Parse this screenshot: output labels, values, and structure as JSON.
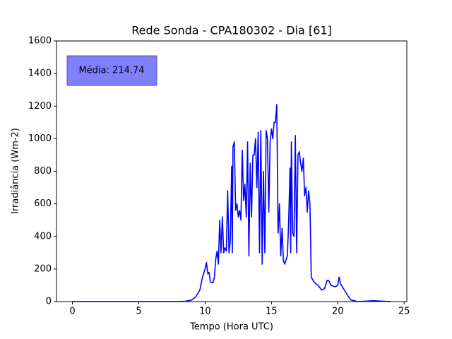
{
  "chart_data": {
    "type": "line",
    "title": "Rede Sonda - CPA180302 - Dia [61]",
    "x_label": "Tempo (Hora UTC)",
    "y_label": "Irradiância (Wm-2)",
    "annotation": "Média: 214.74",
    "x": [
      0,
      2,
      4,
      6,
      8,
      8.5,
      9.0,
      9.3,
      9.6,
      9.8,
      10.0,
      10.1,
      10.2,
      10.3,
      10.4,
      10.6,
      10.7,
      10.8,
      10.9,
      11.0,
      11.1,
      11.2,
      11.3,
      11.4,
      11.5,
      11.6,
      11.7,
      11.8,
      11.9,
      12.0,
      12.05,
      12.1,
      12.2,
      12.3,
      12.4,
      12.5,
      12.6,
      12.7,
      12.8,
      12.9,
      13.0,
      13.1,
      13.2,
      13.3,
      13.4,
      13.5,
      13.6,
      13.7,
      13.8,
      13.9,
      14.0,
      14.1,
      14.2,
      14.3,
      14.4,
      14.5,
      14.6,
      14.7,
      14.8,
      14.9,
      15.0,
      15.1,
      15.2,
      15.3,
      15.4,
      15.5,
      15.6,
      15.7,
      15.8,
      15.9,
      16.0,
      16.2,
      16.3,
      16.4,
      16.45,
      16.5,
      16.6,
      16.7,
      16.8,
      16.9,
      17.0,
      17.1,
      17.2,
      17.3,
      17.4,
      17.5,
      17.6,
      17.7,
      17.8,
      17.9,
      18.0,
      18.2,
      18.5,
      18.8,
      19.0,
      19.2,
      19.3,
      19.5,
      19.8,
      20.0,
      20.1,
      20.2,
      20.5,
      20.8,
      21.0,
      21.5,
      22.7,
      24
    ],
    "series": [
      {
        "name": "Irradiância",
        "color": "#0000ff",
        "values": [
          0,
          0,
          0,
          0,
          0,
          2,
          10,
          30,
          70,
          150,
          200,
          240,
          170,
          180,
          120,
          115,
          150,
          260,
          310,
          230,
          500,
          300,
          520,
          300,
          330,
          310,
          680,
          300,
          370,
          830,
          300,
          950,
          980,
          560,
          600,
          520,
          560,
          500,
          930,
          620,
          720,
          520,
          980,
          280,
          850,
          520,
          900,
          900,
          1000,
          700,
          1040,
          300,
          1050,
          230,
          800,
          300,
          1050,
          1000,
          550,
          980,
          1060,
          1000,
          1100,
          1100,
          1210,
          420,
          600,
          280,
          450,
          250,
          230,
          280,
          500,
          820,
          300,
          980,
          420,
          400,
          1020,
          300,
          900,
          920,
          850,
          800,
          880,
          650,
          700,
          550,
          680,
          600,
          150,
          120,
          100,
          70,
          80,
          130,
          130,
          100,
          90,
          100,
          150,
          110,
          70,
          30,
          10,
          0,
          5,
          0
        ]
      }
    ],
    "xlim": [
      -1.2,
      25.2
    ],
    "xticks": [
      0,
      5,
      10,
      15,
      20,
      25
    ],
    "ylim": [
      0,
      1600
    ],
    "yticks": [
      0,
      200,
      400,
      600,
      800,
      1000,
      1200,
      1400,
      1600
    ],
    "grid": false
  }
}
